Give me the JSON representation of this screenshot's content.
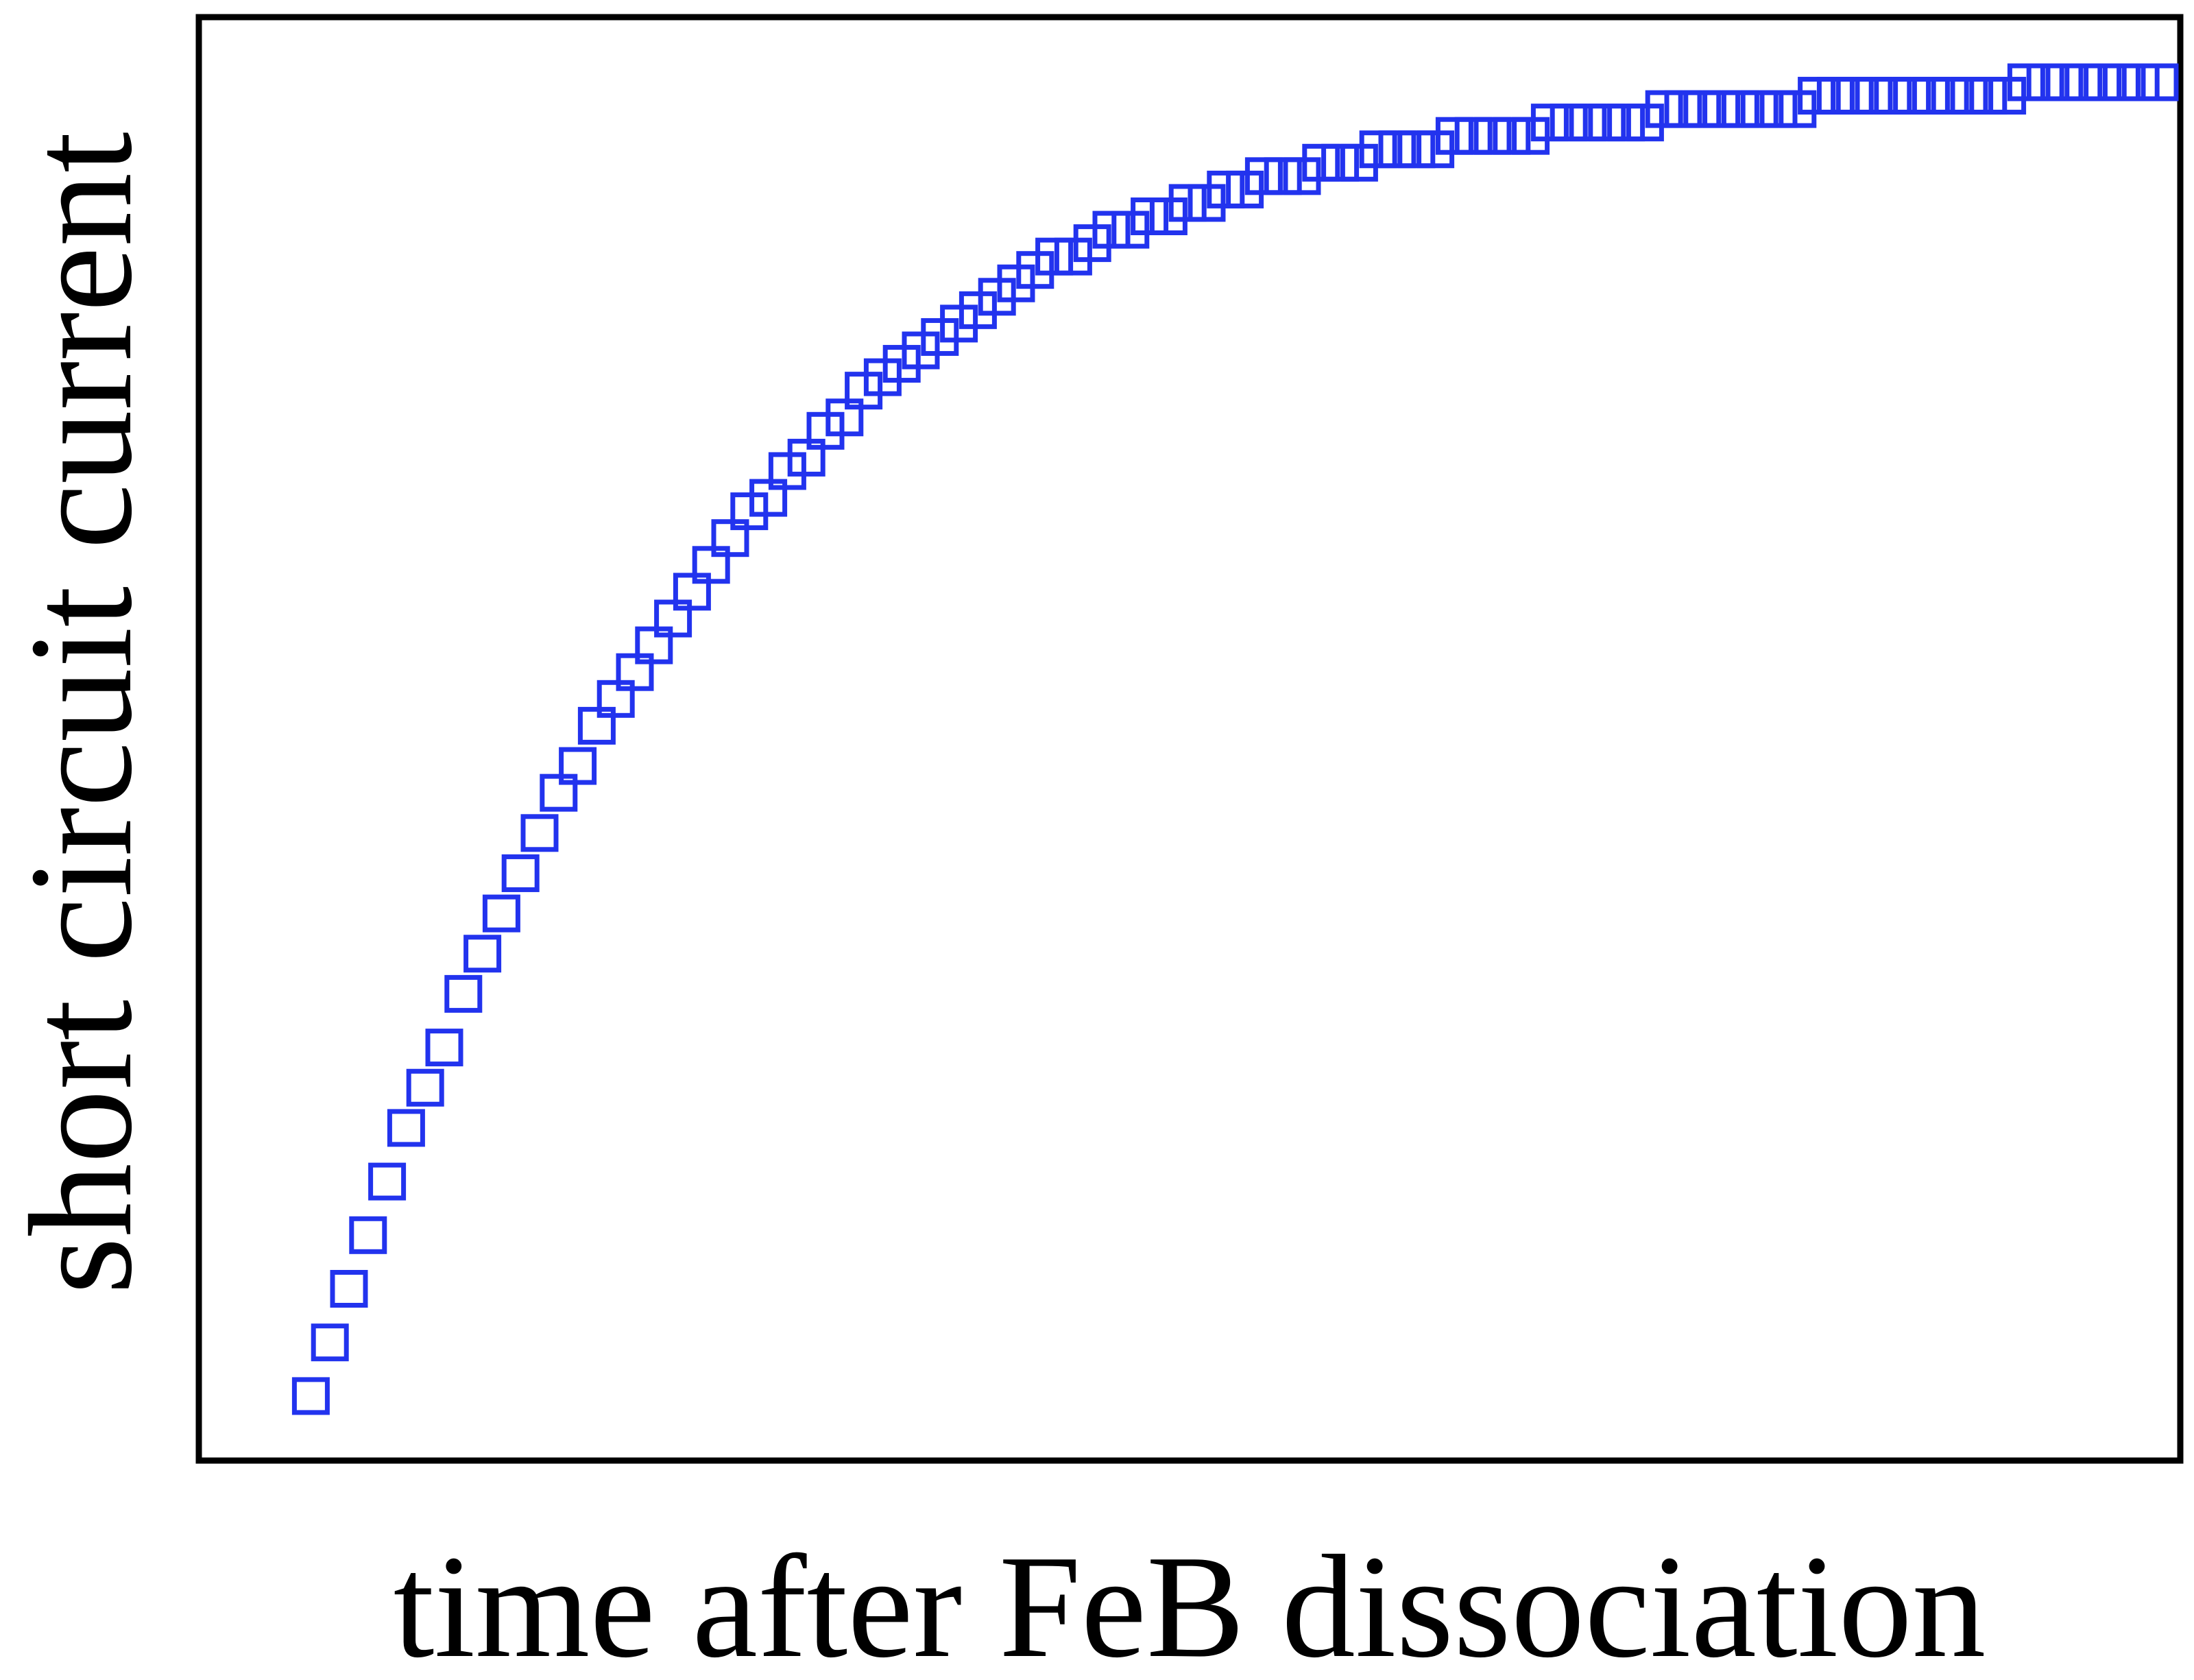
{
  "chart_data": {
    "type": "scatter",
    "title": "",
    "xlabel": "time after FeB dissociation",
    "ylabel": "short circuit current",
    "x_tick_labels": [],
    "y_tick_labels": [],
    "grid": false,
    "legend": "none",
    "marker": "open-square",
    "series_color": "#2233ee",
    "xlim": [
      0,
      1
    ],
    "ylim": [
      0,
      1
    ],
    "series": [
      {
        "x": [
          0.03,
          0.04,
          0.05,
          0.06,
          0.07,
          0.08,
          0.09,
          0.1,
          0.11,
          0.12,
          0.13,
          0.14,
          0.15,
          0.16,
          0.17,
          0.18,
          0.19,
          0.2,
          0.21,
          0.22,
          0.23,
          0.24,
          0.25,
          0.26,
          0.27,
          0.28,
          0.29,
          0.3,
          0.31,
          0.32,
          0.33,
          0.34,
          0.35,
          0.36,
          0.37,
          0.38,
          0.39,
          0.4,
          0.41,
          0.42,
          0.43,
          0.44,
          0.45,
          0.46,
          0.47,
          0.48,
          0.49,
          0.5,
          0.51,
          0.52,
          0.53,
          0.54,
          0.55,
          0.56,
          0.57,
          0.58,
          0.59,
          0.6,
          0.61,
          0.62,
          0.63,
          0.64,
          0.65,
          0.66,
          0.67,
          0.68,
          0.69,
          0.7,
          0.71,
          0.72,
          0.73,
          0.74,
          0.75,
          0.76,
          0.77,
          0.78,
          0.79,
          0.8,
          0.81,
          0.82,
          0.83,
          0.84,
          0.85,
          0.86,
          0.87,
          0.88,
          0.89,
          0.9,
          0.91,
          0.92,
          0.93,
          0.94,
          0.95,
          0.96,
          0.97,
          0.98,
          0.99,
          1.0
        ],
        "y": [
          0.02,
          0.06,
          0.1,
          0.14,
          0.18,
          0.22,
          0.25,
          0.28,
          0.32,
          0.35,
          0.38,
          0.41,
          0.44,
          0.47,
          0.49,
          0.52,
          0.54,
          0.56,
          0.58,
          0.6,
          0.62,
          0.64,
          0.66,
          0.68,
          0.69,
          0.71,
          0.72,
          0.74,
          0.75,
          0.77,
          0.78,
          0.79,
          0.8,
          0.81,
          0.82,
          0.83,
          0.84,
          0.85,
          0.86,
          0.87,
          0.87,
          0.88,
          0.89,
          0.89,
          0.9,
          0.9,
          0.91,
          0.91,
          0.92,
          0.92,
          0.93,
          0.93,
          0.93,
          0.94,
          0.94,
          0.94,
          0.95,
          0.95,
          0.95,
          0.95,
          0.96,
          0.96,
          0.96,
          0.96,
          0.96,
          0.97,
          0.97,
          0.97,
          0.97,
          0.97,
          0.97,
          0.98,
          0.98,
          0.98,
          0.98,
          0.98,
          0.98,
          0.98,
          0.98,
          0.99,
          0.99,
          0.99,
          0.99,
          0.99,
          0.99,
          0.99,
          0.99,
          0.99,
          0.99,
          0.99,
          1.0,
          1.0,
          1.0,
          1.0,
          1.0,
          1.0,
          1.0,
          1.0
        ]
      }
    ]
  }
}
